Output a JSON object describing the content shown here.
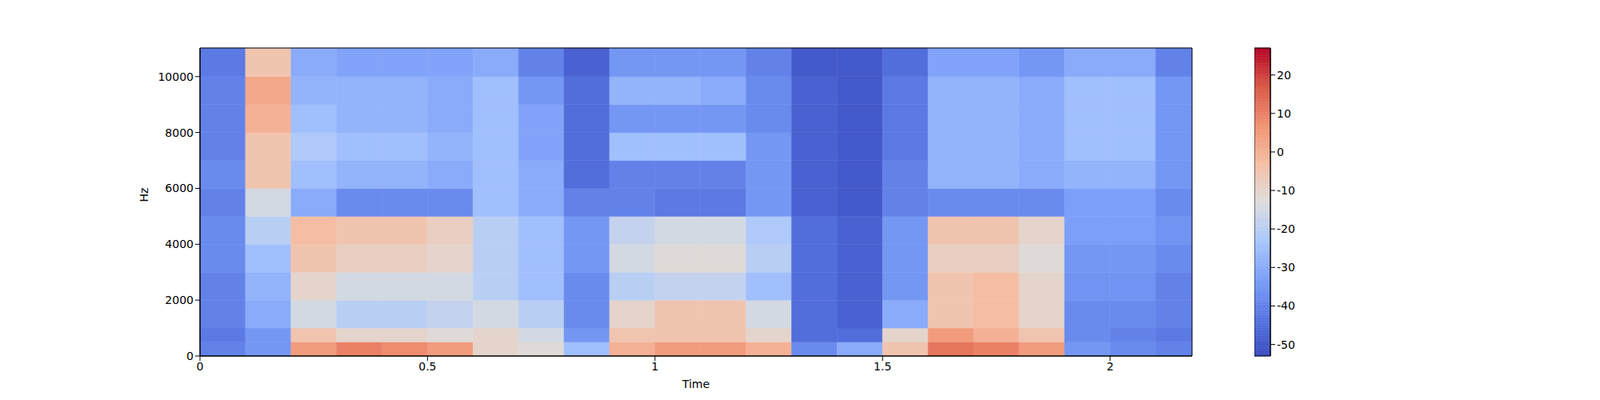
{
  "chart_data": {
    "type": "heatmap",
    "x_label": "Time",
    "y_label": "Hz",
    "xlim": [
      0,
      2.18
    ],
    "xticks": [
      0,
      0.5,
      1,
      1.5,
      2
    ],
    "ylim": [
      0,
      11025
    ],
    "yticks": [
      0,
      2000,
      4000,
      6000,
      8000,
      10000
    ],
    "x_edges": [
      0,
      0.1,
      0.2,
      0.3,
      0.4,
      0.5,
      0.6,
      0.7,
      0.8,
      0.9,
      1.0,
      1.1,
      1.2,
      1.3,
      1.4,
      1.5,
      1.6,
      1.7,
      1.8,
      1.9,
      2.0,
      2.1,
      2.18
    ],
    "y_edges": [
      0,
      500,
      1000,
      2000,
      3000,
      4000,
      5000,
      6000,
      7000,
      8000,
      9000,
      10000,
      11025
    ],
    "cells": [
      [
        -40,
        -35,
        5,
        10,
        8,
        5,
        -10,
        -12,
        -25,
        0,
        5,
        5,
        0,
        -38,
        -30,
        -5,
        12,
        10,
        5,
        -35,
        -38,
        -40
      ],
      [
        -42,
        -35,
        -5,
        -10,
        -10,
        -12,
        -10,
        -15,
        -35,
        -5,
        -5,
        -5,
        -10,
        -45,
        -45,
        -10,
        5,
        0,
        -5,
        -38,
        -40,
        -42
      ],
      [
        -40,
        -30,
        -15,
        -20,
        -20,
        -18,
        -15,
        -20,
        -38,
        -10,
        -5,
        -5,
        -15,
        -45,
        -48,
        -30,
        -5,
        -3,
        -10,
        -38,
        -38,
        -40
      ],
      [
        -40,
        -28,
        -10,
        -15,
        -15,
        -15,
        -20,
        -25,
        -38,
        -20,
        -18,
        -18,
        -25,
        -45,
        -48,
        -35,
        -5,
        -3,
        -10,
        -36,
        -36,
        -40
      ],
      [
        -38,
        -25,
        -5,
        -8,
        -8,
        -10,
        -20,
        -25,
        -35,
        -15,
        -12,
        -12,
        -20,
        -45,
        -48,
        -35,
        -8,
        -8,
        -12,
        -35,
        -35,
        -38
      ],
      [
        -38,
        -20,
        -3,
        -5,
        -5,
        -8,
        -20,
        -25,
        -35,
        -18,
        -15,
        -15,
        -22,
        -45,
        -48,
        -35,
        -5,
        -5,
        -10,
        -33,
        -33,
        -36
      ],
      [
        -40,
        -15,
        -30,
        -38,
        -38,
        -38,
        -25,
        -30,
        -40,
        -40,
        -42,
        -42,
        -35,
        -48,
        -50,
        -40,
        -38,
        -38,
        -38,
        -33,
        -33,
        -38
      ],
      [
        -38,
        -5,
        -25,
        -28,
        -28,
        -30,
        -25,
        -30,
        -45,
        -40,
        -40,
        -40,
        -35,
        -48,
        -50,
        -40,
        -28,
        -28,
        -30,
        -28,
        -28,
        -35
      ],
      [
        -40,
        -5,
        -22,
        -25,
        -25,
        -28,
        -25,
        -32,
        -45,
        -25,
        -25,
        -25,
        -35,
        -48,
        -50,
        -42,
        -28,
        -28,
        -30,
        -25,
        -25,
        -35
      ],
      [
        -40,
        0,
        -25,
        -28,
        -28,
        -30,
        -25,
        -32,
        -45,
        -35,
        -35,
        -35,
        -38,
        -48,
        -50,
        -42,
        -28,
        -28,
        -30,
        -25,
        -25,
        -35
      ],
      [
        -40,
        2,
        -28,
        -28,
        -28,
        -30,
        -25,
        -35,
        -45,
        -28,
        -28,
        -30,
        -38,
        -48,
        -50,
        -42,
        -28,
        -28,
        -30,
        -25,
        -25,
        -35
      ],
      [
        -42,
        -5,
        -30,
        -32,
        -32,
        -32,
        -30,
        -40,
        -48,
        -35,
        -35,
        -35,
        -40,
        -50,
        -50,
        -45,
        -32,
        -32,
        -35,
        -30,
        -30,
        -40
      ]
    ],
    "colorbar": {
      "range": [
        -53,
        27
      ],
      "ticks": [
        -50,
        -40,
        -30,
        -20,
        -10,
        0,
        10,
        20
      ]
    }
  }
}
